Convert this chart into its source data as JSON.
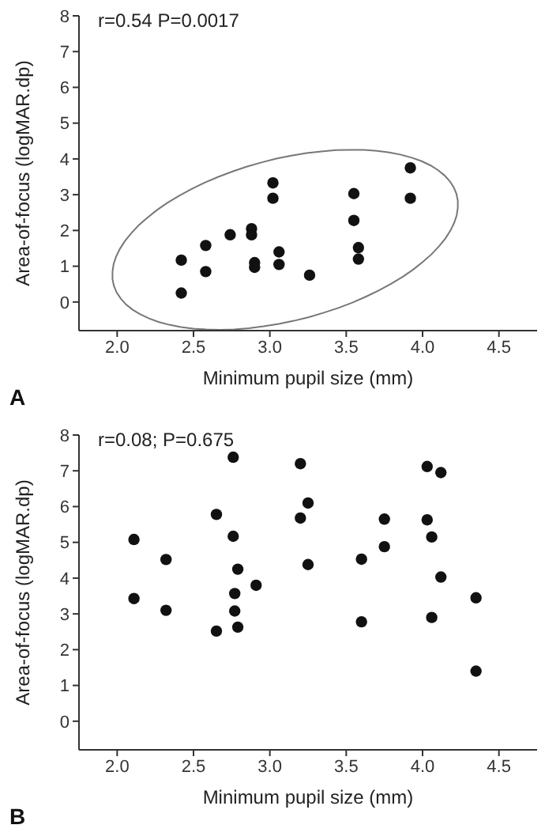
{
  "chart_data": [
    {
      "type": "scatter",
      "xlabel": "Minimum pupil size (mm)",
      "ylabel": "Area-of-focus (logMAR.dp)",
      "annotations": [
        "r=0.54 P=0.0017",
        "A"
      ],
      "xlim": [
        1.75,
        4.75
      ],
      "ylim": [
        -0.8,
        8
      ],
      "xticks": [
        {
          "value": 2,
          "label": "2.0"
        },
        2.5,
        {
          "value": 3,
          "label": "3.0"
        },
        3.5,
        {
          "value": 4,
          "label": "4.0"
        },
        4.5
      ],
      "yticks": [
        0,
        1,
        2,
        3,
        4,
        5,
        6,
        7,
        8
      ],
      "marker": "circle",
      "series": [
        {
          "color": "#111111",
          "x": [
            2.42,
            2.42,
            2.58,
            2.58,
            2.74,
            2.88,
            2.88,
            2.9,
            2.9,
            3.02,
            3.02,
            3.06,
            3.06,
            3.26,
            3.55,
            3.55,
            3.58,
            3.58,
            3.92,
            3.92
          ],
          "values": [
            1.17,
            0.25,
            1.58,
            0.85,
            1.88,
            2.05,
            1.88,
            1.1,
            0.97,
            3.33,
            2.9,
            1.4,
            1.05,
            0.75,
            3.03,
            2.28,
            1.52,
            1.2,
            3.75,
            2.9
          ]
        }
      ]
    },
    {
      "type": "scatter",
      "xlabel": "Minimum pupil size (mm)",
      "ylabel": "Area-of-focus (logMAR.dp)",
      "annotations": [
        "r=0.08; P=0.675",
        "B"
      ],
      "xlim": [
        1.75,
        4.75
      ],
      "ylim": [
        -0.8,
        8
      ],
      "xticks": [
        {
          "value": 2,
          "label": "2.0"
        },
        2.5,
        {
          "value": 3,
          "label": "3.0"
        },
        3.5,
        {
          "value": 4,
          "label": "4.0"
        },
        4.5
      ],
      "yticks": [
        0,
        1,
        2,
        3,
        4,
        5,
        6,
        7,
        8
      ],
      "marker": "circle",
      "series": [
        {
          "color": "#111111",
          "x": [
            2.11,
            2.11,
            2.32,
            2.32,
            2.65,
            2.65,
            2.76,
            2.76,
            2.77,
            2.77,
            2.79,
            2.79,
            2.91,
            3.2,
            3.2,
            3.25,
            3.25,
            3.6,
            3.6,
            3.75,
            3.75,
            4.03,
            4.03,
            4.06,
            4.06,
            4.12,
            4.12,
            4.35,
            4.35
          ],
          "values": [
            5.08,
            3.43,
            4.52,
            3.1,
            5.78,
            2.52,
            7.38,
            5.17,
            3.57,
            3.08,
            4.25,
            2.63,
            3.8,
            7.2,
            5.68,
            6.1,
            4.38,
            4.53,
            2.78,
            5.65,
            4.88,
            7.12,
            5.63,
            5.15,
            2.9,
            6.95,
            4.03,
            3.45,
            1.4
          ]
        }
      ]
    }
  ]
}
